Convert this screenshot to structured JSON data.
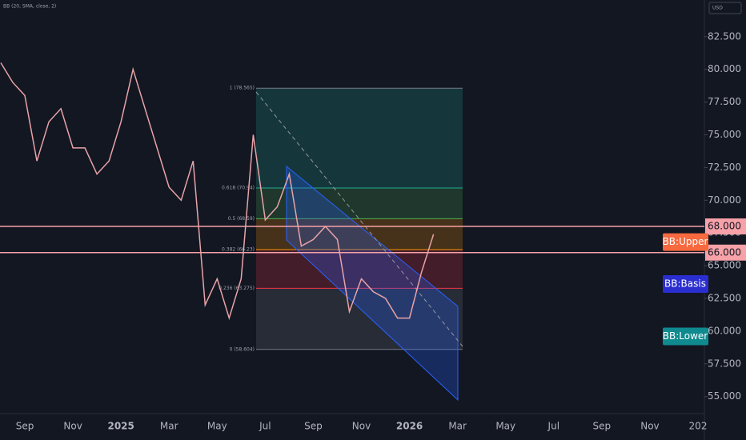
{
  "chart_data": {
    "type": "line",
    "indicator_label": "BB (20, SMA, close, 2)",
    "currency": "USD",
    "categories": [
      null,
      null,
      "Sep",
      null,
      null,
      null,
      "Nov",
      null,
      null,
      null,
      "2025",
      null,
      null,
      null,
      "Mar",
      null,
      null,
      null,
      "May",
      null,
      null,
      null,
      "Jul",
      null,
      null,
      null,
      "Sep",
      null,
      null,
      null,
      "Nov",
      null,
      null,
      null,
      "2026",
      null,
      null,
      null,
      "Mar",
      null,
      null,
      null,
      "May",
      null,
      null,
      null,
      "Jul",
      null,
      null,
      null,
      "Sep",
      null,
      null,
      null,
      "Nov",
      null,
      null,
      null,
      "202"
    ],
    "series": [
      {
        "color": "#e8a3a8",
        "values": [
          80.5,
          79,
          78,
          73,
          76,
          77,
          74,
          74,
          72,
          73,
          76,
          80,
          77,
          74,
          71,
          70,
          73,
          62,
          64,
          61,
          64,
          75,
          68.5,
          69.5,
          72,
          66.5,
          67,
          68,
          67,
          61.5,
          64,
          63,
          62.5,
          61,
          61,
          64.5,
          67.4,
          null,
          null,
          null,
          null,
          null,
          null,
          null,
          null,
          null,
          null,
          null,
          null,
          null,
          null,
          null,
          null,
          null,
          null,
          null,
          null,
          null,
          null
        ]
      }
    ],
    "ylim": [
      53.7,
      85.3
    ],
    "yticks": [
      {
        "value": 82.5,
        "label": "82.500"
      },
      {
        "value": 80,
        "label": "80.000"
      },
      {
        "value": 77.5,
        "label": "77.500"
      },
      {
        "value": 75,
        "label": "75.000"
      },
      {
        "value": 72.5,
        "label": "72.500"
      },
      {
        "value": 70,
        "label": "70.000"
      },
      {
        "value": 67.5,
        "label": "67.500"
      },
      {
        "value": 65,
        "label": "65.000"
      },
      {
        "value": 62.5,
        "label": "62.500"
      },
      {
        "value": 60,
        "label": "60.000"
      },
      {
        "value": 57.5,
        "label": "57.500"
      },
      {
        "value": 55,
        "label": "55.000"
      }
    ],
    "price_lines": [
      {
        "value": 68,
        "label": "68.000"
      },
      {
        "value": 66,
        "label": "66.000"
      }
    ],
    "fib_levels": [
      {
        "value": 78.565,
        "label": "1 (78.565)",
        "color": "#787b86"
      },
      {
        "value": 70.94,
        "label": "0.618 (70.94)",
        "color": "#22ab94"
      },
      {
        "value": 68.59,
        "label": "0.5 (68.59)",
        "color": "#4caf50"
      },
      {
        "value": 66.23,
        "label": "0.382 (66.23)",
        "color": "#ff9800"
      },
      {
        "value": 63.275,
        "label": "0.236 (63.275)",
        "color": "#f23645"
      },
      {
        "value": 58.604,
        "label": "0 (58.604)",
        "color": "#787b86"
      }
    ],
    "annotations": [
      {
        "text": "BB:Upper",
        "color": "#f7693e",
        "value": 66.8
      },
      {
        "text": "BB:Basis",
        "color": "#2a2ed0",
        "value": 63.6
      },
      {
        "text": "BB:Lower",
        "color": "#0f8a8f",
        "value": 59.6
      }
    ]
  }
}
